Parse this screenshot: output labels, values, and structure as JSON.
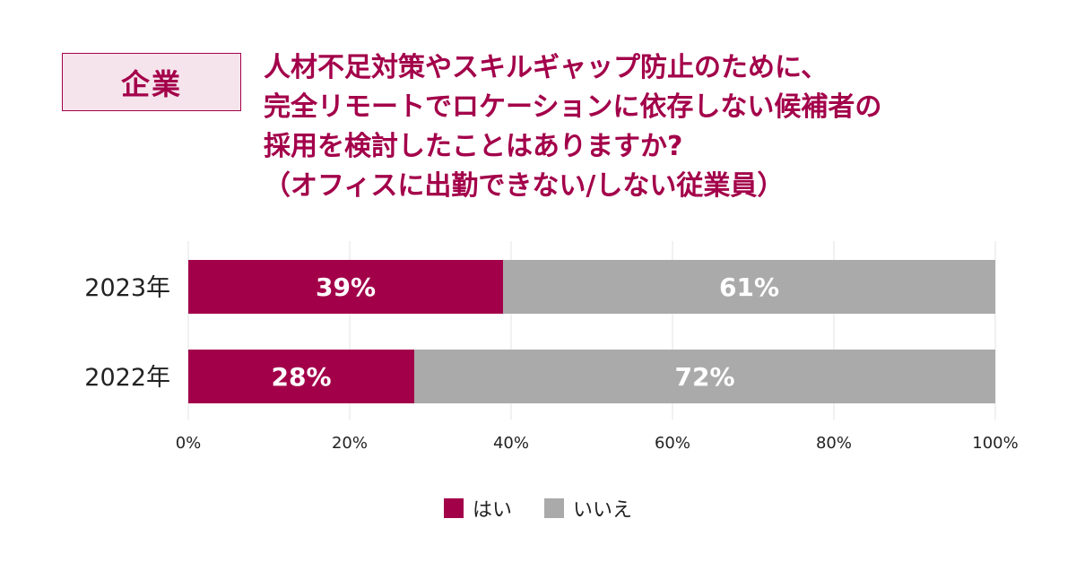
{
  "badge": {
    "label": "企業"
  },
  "title_lines": [
    "人材不足対策やスキルギャップ防止のために、",
    "完全リモートでロケーションに依存しない候補者の",
    "採用を検討したことはありますか?",
    "（オフィスに出勤できない/しない従業員）"
  ],
  "colors": {
    "accent": "#a3004a",
    "badge_bg": "#f6e4ec",
    "no": "#aaaaaa",
    "grid": "#e3e3e3",
    "text": "#222222",
    "bar_label": "#ffffff"
  },
  "chart_data": {
    "type": "bar",
    "orientation": "horizontal",
    "stacked": true,
    "categories": [
      "2023年",
      "2022年"
    ],
    "series": [
      {
        "name": "はい",
        "values": [
          39,
          28
        ],
        "color": "#a3004a",
        "labels": [
          "39%",
          "28%"
        ]
      },
      {
        "name": "いいえ",
        "values": [
          61,
          72
        ],
        "color": "#aaaaaa",
        "labels": [
          "61%",
          "72%"
        ]
      }
    ],
    "xlim": [
      0,
      100
    ],
    "xticks": [
      0,
      20,
      40,
      60,
      80,
      100
    ],
    "xtick_labels": [
      "0%",
      "20%",
      "40%",
      "60%",
      "80%",
      "100%"
    ],
    "grid": true,
    "legend_position": "bottom"
  }
}
